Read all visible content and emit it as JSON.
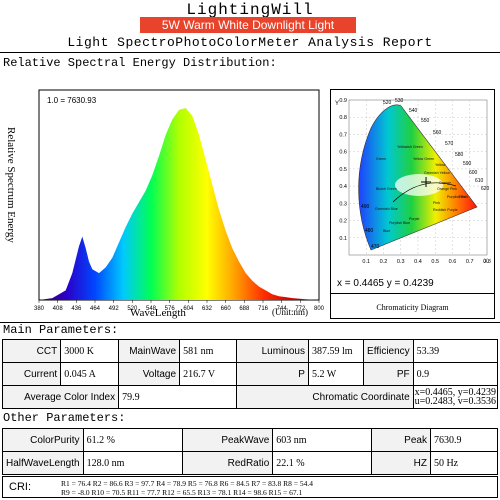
{
  "header": {
    "brand": "LightingWill",
    "subtitle": "5W Warm White Downlight Light",
    "report_title": "Light SpectroPhotoColorMeter Analysis Report"
  },
  "spectrum_section": {
    "title": "Relative Spectral Energy Distribution:"
  },
  "chart_data": [
    {
      "type": "area",
      "ylabel": "Relative Spectrum Energy",
      "xlabel": "WaveLength",
      "unit_label": "(Unit:nm)",
      "peak_label": "1.0 = 7630.93",
      "xlim": [
        380,
        800
      ],
      "ylim": [
        0,
        1
      ],
      "x_ticks": [
        "380",
        "408",
        "436",
        "464",
        "492",
        "520",
        "548",
        "576",
        "604",
        "632",
        "660",
        "688",
        "716",
        "744",
        "772",
        "800"
      ],
      "x": [
        380,
        400,
        420,
        430,
        440,
        445,
        450,
        455,
        460,
        470,
        480,
        490,
        500,
        510,
        520,
        530,
        540,
        550,
        560,
        570,
        580,
        590,
        600,
        610,
        620,
        630,
        640,
        650,
        660,
        670,
        680,
        690,
        700,
        710,
        720,
        730,
        740,
        750,
        760,
        780,
        800
      ],
      "values": [
        0,
        0.01,
        0.05,
        0.14,
        0.28,
        0.33,
        0.27,
        0.2,
        0.16,
        0.14,
        0.17,
        0.22,
        0.3,
        0.38,
        0.45,
        0.51,
        0.57,
        0.65,
        0.75,
        0.86,
        0.94,
        0.99,
        1.0,
        0.96,
        0.86,
        0.73,
        0.6,
        0.47,
        0.36,
        0.27,
        0.2,
        0.14,
        0.1,
        0.07,
        0.05,
        0.03,
        0.02,
        0.015,
        0.01,
        0.004,
        0
      ],
      "colors": [
        "#3a0060",
        "#2b00c9",
        "#0047ff",
        "#00c8ff",
        "#00ff55",
        "#b0ff00",
        "#ffff00",
        "#ffa000",
        "#ff3000",
        "#d00000",
        "#700000"
      ]
    },
    {
      "type": "scatter",
      "title": "Chromaticity Diagram",
      "xlim": [
        0,
        0.8
      ],
      "ylim": [
        0,
        0.9
      ],
      "x_ticks": [
        "0.1",
        "0.2",
        "0.3",
        "0.4",
        "0.5",
        "0.6",
        "0.7",
        "0.8"
      ],
      "y_ticks": [
        "0.9",
        "0.8",
        "0.7",
        "0.6",
        "0.5",
        "0.4",
        "0.3",
        "0.2",
        "0.1"
      ],
      "axis_marks": [
        "Y",
        "X"
      ],
      "wavelength_labels": [
        "520",
        "530",
        "540",
        "550",
        "560",
        "570",
        "580",
        "590",
        "600",
        "610",
        "620",
        "490",
        "480",
        "470"
      ],
      "region_labels": [
        "Green",
        "Yellowish Green",
        "Yellow Green",
        "Yellow",
        "Greenish Yellow",
        "Orange",
        "Orange Pink",
        "Red",
        "Purplish Red",
        "Pink",
        "Reddish Purple",
        "Purple",
        "Purplish Blue",
        "Blue",
        "Greenish Blue",
        "Bluish Green"
      ],
      "point": {
        "x": 0.4465,
        "y": 0.4239
      },
      "point_text": "x = 0.4465   y = 0.4239"
    }
  ],
  "main_params": {
    "title": "Main Parameters:",
    "rows": [
      [
        {
          "label": "CCT",
          "value": "3000 K"
        },
        {
          "label": "MainWave",
          "value": "581 nm"
        },
        {
          "label": "Luminous",
          "value": "387.59 lm"
        },
        {
          "label": "Efficiency",
          "value": "53.39"
        }
      ],
      [
        {
          "label": "Current",
          "value": "0.045 A"
        },
        {
          "label": "Voltage",
          "value": "216.7 V"
        },
        {
          "label": "P",
          "value": "5.2 W"
        },
        {
          "label": "PF",
          "value": "0.9"
        }
      ]
    ],
    "aci_label": "Average Color Index",
    "aci_value": "79.9",
    "chroma_label": "Chromatic Coordinate",
    "chroma_line1": "x=0.4465,  y=0.4239",
    "chroma_line2": "u=0.2483,  v=0.3536"
  },
  "other_params": {
    "title": "Other Parameters:",
    "rows": [
      [
        {
          "label": "ColorPurity",
          "value": "61.2 %"
        },
        {
          "label": "PeakWave",
          "value": "603 nm"
        },
        {
          "label": "Peak",
          "value": "7630.9"
        }
      ],
      [
        {
          "label": "HalfWaveLength",
          "value": "128.0 nm"
        },
        {
          "label": "RedRatio",
          "value": "22.1 %"
        },
        {
          "label": "HZ",
          "value": "50 Hz"
        }
      ]
    ],
    "cri_label": "CRI:",
    "cri_line1": "R1 = 76.4    R2 = 86.6    R3 = 97.7    R4 = 78.9    R5 = 76.8    R6 = 84.5    R7 = 83.8    R8 = 54.4",
    "cri_line2": "R9 = -8.0    R10 = 70.5   R11 = 77.7   R12 = 65.5   R13 = 78.1   R14 = 98.6   R15 = 67.1"
  }
}
